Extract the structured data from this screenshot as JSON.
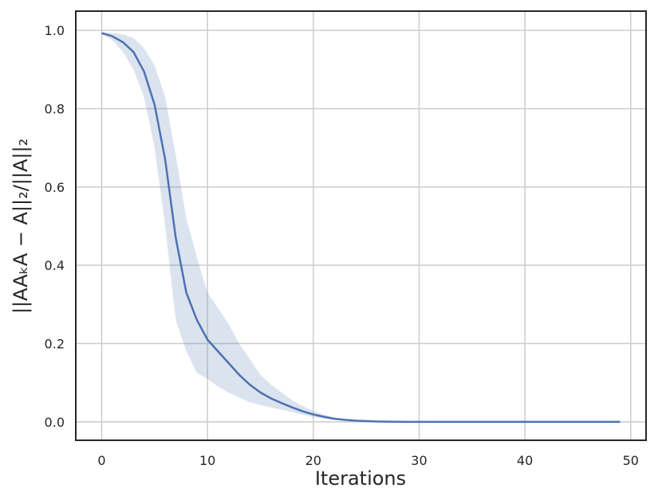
{
  "chart_data": {
    "type": "line",
    "x_label": "Iterations",
    "y_label": "||AAₖA − A||₂/||A||₂",
    "color": "#4c72b0",
    "x": [
      0,
      1,
      2,
      3,
      4,
      5,
      6,
      7,
      8,
      9,
      10,
      11,
      12,
      13,
      14,
      15,
      16,
      17,
      18,
      19,
      20,
      21,
      22,
      23,
      24,
      25,
      26,
      27,
      28,
      29,
      30,
      31,
      32,
      33,
      34,
      35,
      36,
      37,
      38,
      39,
      40,
      41,
      42,
      43,
      44,
      45,
      46,
      47,
      48,
      49
    ],
    "values": [
      0.993,
      0.985,
      0.97,
      0.945,
      0.895,
      0.81,
      0.67,
      0.47,
      0.33,
      0.26,
      0.21,
      0.18,
      0.15,
      0.12,
      0.095,
      0.075,
      0.06,
      0.048,
      0.037,
      0.027,
      0.019,
      0.013,
      0.008,
      0.005,
      0.003,
      0.002,
      0.001,
      0.0006,
      0.0003,
      0,
      0,
      0,
      0,
      0,
      0,
      0,
      0,
      0,
      0,
      0,
      0,
      0,
      0,
      0,
      0,
      0,
      0,
      0,
      0,
      0
    ],
    "upper": [
      0.995,
      0.993,
      0.99,
      0.98,
      0.955,
      0.91,
      0.83,
      0.68,
      0.52,
      0.42,
      0.33,
      0.29,
      0.25,
      0.2,
      0.16,
      0.12,
      0.095,
      0.075,
      0.055,
      0.04,
      0.028,
      0.018,
      0.011,
      0.007,
      0.004,
      0.002,
      0.001,
      0,
      0,
      0,
      0,
      0,
      0,
      0,
      0,
      0,
      0,
      0,
      0,
      0,
      0,
      0,
      0,
      0,
      0,
      0,
      0,
      0,
      0,
      0
    ],
    "lower": [
      0.99,
      0.975,
      0.945,
      0.9,
      0.83,
      0.7,
      0.5,
      0.26,
      0.18,
      0.125,
      0.11,
      0.09,
      0.075,
      0.062,
      0.05,
      0.043,
      0.037,
      0.031,
      0.025,
      0.018,
      0.012,
      0.008,
      0.005,
      0.003,
      0.002,
      0.001,
      0,
      0,
      0,
      0,
      0,
      0,
      0,
      0,
      0,
      0,
      0,
      0,
      0,
      0,
      0,
      0,
      0,
      0,
      0,
      0,
      0,
      0,
      0,
      0
    ],
    "xlim": [
      -2.45,
      51.45
    ],
    "ylim": [
      -0.047,
      1.049
    ],
    "xticks": [
      0,
      10,
      20,
      30,
      40,
      50
    ],
    "yticks": [
      {
        "value": 0,
        "label": "0.0"
      },
      0.2,
      0.4,
      0.6,
      0.8,
      {
        "value": 1,
        "label": "1.0"
      }
    ],
    "grid": true
  }
}
